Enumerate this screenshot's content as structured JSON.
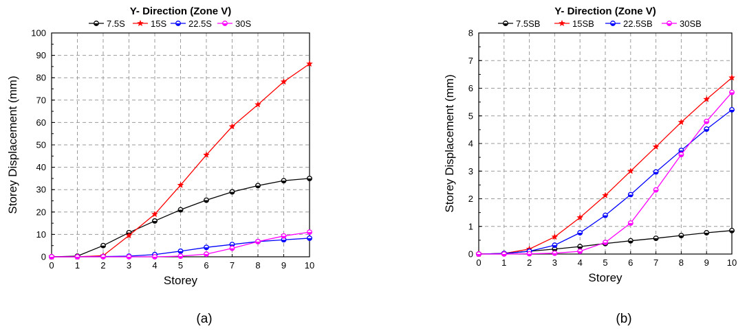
{
  "chart_data": [
    {
      "type": "line",
      "title": "Y- Direction (Zone V)",
      "xlabel": "Storey",
      "ylabel": "Storey Displacement (mm)",
      "caption": "(a)",
      "x": [
        0,
        1,
        2,
        3,
        4,
        5,
        6,
        7,
        8,
        9,
        10
      ],
      "xlim": [
        0,
        10
      ],
      "ylim": [
        0,
        100
      ],
      "xticks": [
        0,
        1,
        2,
        3,
        4,
        5,
        6,
        7,
        8,
        9,
        10
      ],
      "yticks": [
        0,
        10,
        20,
        30,
        40,
        50,
        60,
        70,
        80,
        90,
        100
      ],
      "grid": true,
      "legend_position": "top",
      "series": [
        {
          "name": "7.5S",
          "color": "#000000",
          "marker": "circle",
          "values": [
            0,
            0.3,
            5,
            10.8,
            16,
            21,
            25.3,
            29,
            31.8,
            34,
            35
          ]
        },
        {
          "name": "15S",
          "color": "#ff0000",
          "marker": "star",
          "values": [
            0,
            0,
            0.5,
            9.5,
            19,
            32,
            45.5,
            58.2,
            68,
            78.2,
            86.2
          ]
        },
        {
          "name": "22.5S",
          "color": "#0000ff",
          "marker": "circle",
          "values": [
            0,
            0,
            0.1,
            0.3,
            1,
            2.5,
            4.2,
            5.5,
            6.8,
            7.6,
            8.3
          ]
        },
        {
          "name": "30S",
          "color": "#ff00ff",
          "marker": "circle",
          "values": [
            0,
            0,
            0,
            0,
            0,
            0.3,
            1.2,
            3.8,
            6.8,
            9.3,
            11
          ]
        }
      ]
    },
    {
      "type": "line",
      "title": "Y- Direction (Zone V)",
      "xlabel": "Storey",
      "ylabel": "Storey Displacement (mm)",
      "caption": "(b)",
      "x": [
        0,
        1,
        2,
        3,
        4,
        5,
        6,
        7,
        8,
        9,
        10
      ],
      "xlim": [
        0,
        10
      ],
      "ylim": [
        0,
        8
      ],
      "xticks": [
        0,
        1,
        2,
        3,
        4,
        5,
        6,
        7,
        8,
        9,
        10
      ],
      "yticks": [
        0,
        1,
        2,
        3,
        4,
        5,
        6,
        7,
        8
      ],
      "grid": true,
      "legend_position": "top",
      "series": [
        {
          "name": "7.5SB",
          "color": "#000000",
          "marker": "circle",
          "values": [
            0,
            0.02,
            0.1,
            0.18,
            0.27,
            0.38,
            0.48,
            0.57,
            0.67,
            0.77,
            0.85
          ]
        },
        {
          "name": "15SB",
          "color": "#ff0000",
          "marker": "star",
          "values": [
            0,
            0.02,
            0.18,
            0.62,
            1.32,
            2.12,
            3.0,
            3.88,
            4.77,
            5.6,
            6.38
          ]
        },
        {
          "name": "22.5SB",
          "color": "#0000ff",
          "marker": "circle",
          "values": [
            0,
            0.02,
            0.1,
            0.32,
            0.77,
            1.4,
            2.15,
            2.97,
            3.75,
            4.52,
            5.22
          ]
        },
        {
          "name": "30SB",
          "color": "#ff00ff",
          "marker": "circle",
          "values": [
            0,
            0,
            0.01,
            0.03,
            0.1,
            0.42,
            1.12,
            2.32,
            3.6,
            4.8,
            5.85
          ]
        }
      ]
    }
  ]
}
